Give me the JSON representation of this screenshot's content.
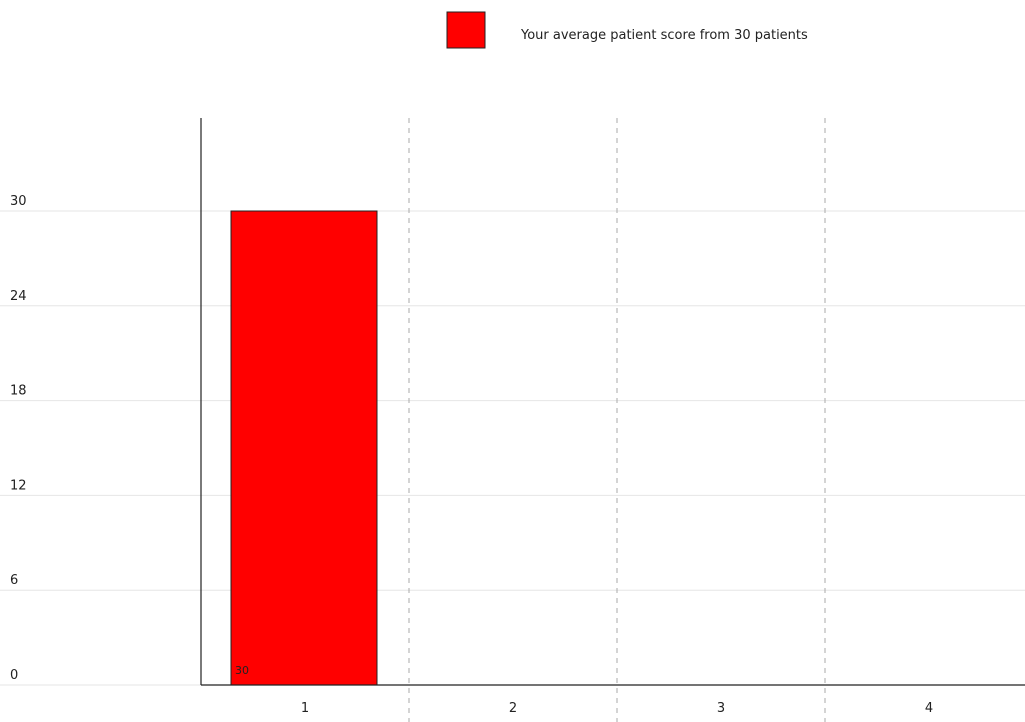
{
  "colors": {
    "bar_fill": "#ff0000",
    "bar_stroke": "#222222",
    "axis": "#222222",
    "gridline": "#e6e6e6",
    "divider": "#aaaaaa"
  },
  "chart_data": {
    "type": "bar",
    "title": "",
    "xlabel": "",
    "ylabel": "",
    "categories": [
      "1",
      "2",
      "3",
      "4"
    ],
    "series": [
      {
        "name": "Your average patient score from 30 patients",
        "values": [
          30,
          null,
          null,
          null
        ],
        "data_labels": [
          "30",
          "",
          "",
          ""
        ]
      }
    ],
    "ylim": [
      0,
      36
    ],
    "y_ticks": [
      0,
      6,
      12,
      18,
      24,
      30
    ],
    "y_tick_labels": [
      "0",
      "6",
      "12",
      "18",
      "24",
      "30"
    ],
    "grid": true,
    "legend_position": "top"
  }
}
